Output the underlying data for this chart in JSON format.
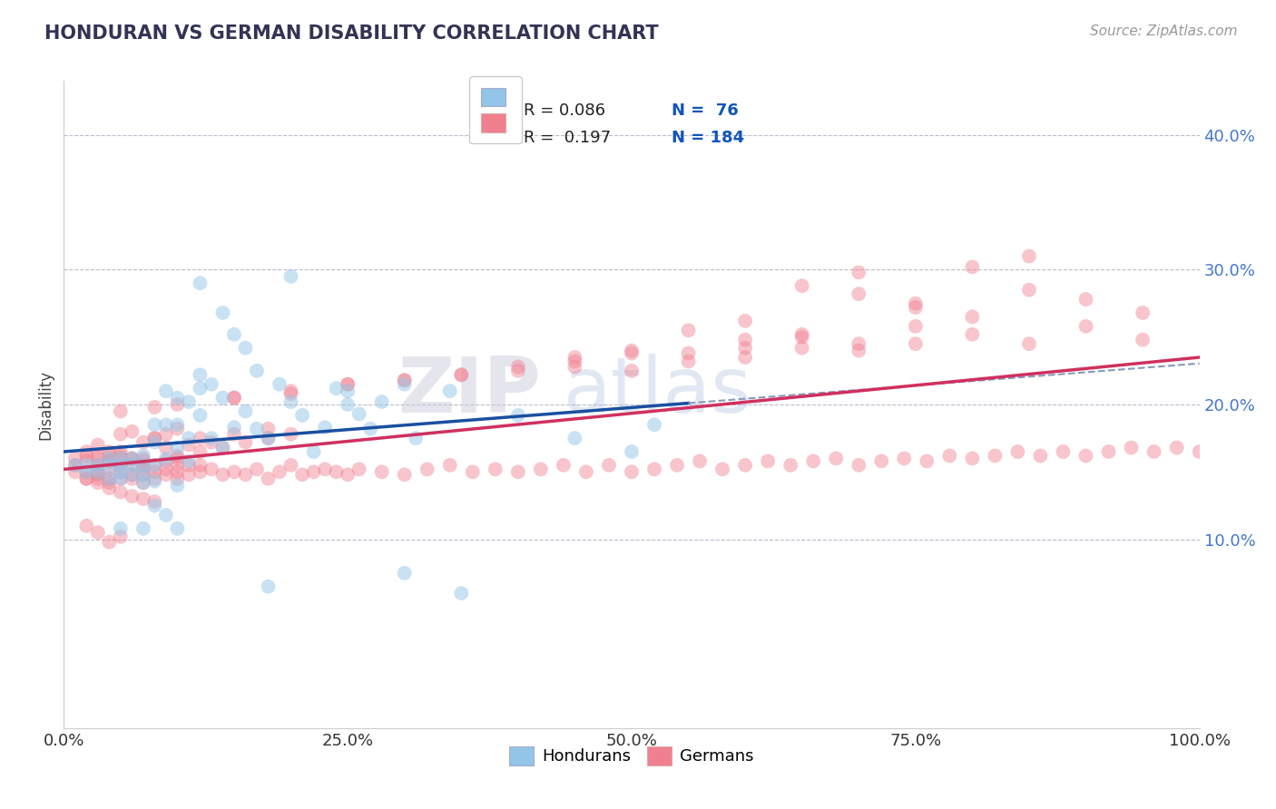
{
  "title": "HONDURAN VS GERMAN DISABILITY CORRELATION CHART",
  "source_text": "Source: ZipAtlas.com",
  "ylabel": "Disability",
  "xlim": [
    0.0,
    1.0
  ],
  "ylim": [
    -0.04,
    0.44
  ],
  "xticks": [
    0.0,
    0.25,
    0.5,
    0.75,
    1.0
  ],
  "xtick_labels": [
    "0.0%",
    "25.0%",
    "50.0%",
    "75.0%",
    "100.0%"
  ],
  "yticks": [
    0.1,
    0.2,
    0.3,
    0.4
  ],
  "ytick_labels": [
    "10.0%",
    "20.0%",
    "30.0%",
    "40.0%"
  ],
  "legend_labels": [
    "Hondurans",
    "Germans"
  ],
  "blue_color": "#92C5E8",
  "pink_color": "#F08090",
  "blue_line_color": "#1A4FA0",
  "pink_line_color": "#D03060",
  "blue_scatter_alpha": 0.5,
  "pink_scatter_alpha": 0.45,
  "watermark_zip": "ZIP",
  "watermark_atlas": "atlas",
  "grid_color": "#BBBBCC",
  "background_color": "#FFFFFF",
  "title_color": "#333355",
  "ylabel_color": "#444444",
  "yticklabel_color": "#4477CC",
  "xticklabel_color": "#333333",
  "source_color": "#999999",
  "legend_r_blue": "R = 0.086",
  "legend_n_blue": "N =  76",
  "legend_r_pink": "R =  0.197",
  "legend_n_pink": "N = 184",
  "hondurans_x": [
    0.01,
    0.02,
    0.02,
    0.03,
    0.03,
    0.04,
    0.04,
    0.04,
    0.05,
    0.05,
    0.05,
    0.05,
    0.06,
    0.06,
    0.06,
    0.07,
    0.07,
    0.07,
    0.07,
    0.08,
    0.08,
    0.08,
    0.08,
    0.09,
    0.09,
    0.09,
    0.1,
    0.1,
    0.1,
    0.1,
    0.11,
    0.11,
    0.11,
    0.12,
    0.12,
    0.12,
    0.13,
    0.13,
    0.14,
    0.14,
    0.15,
    0.15,
    0.16,
    0.17,
    0.17,
    0.18,
    0.19,
    0.2,
    0.21,
    0.22,
    0.23,
    0.24,
    0.25,
    0.26,
    0.27,
    0.28,
    0.3,
    0.31,
    0.34,
    0.4,
    0.45,
    0.5,
    0.52,
    0.05,
    0.07,
    0.08,
    0.09,
    0.1,
    0.12,
    0.14,
    0.16,
    0.18,
    0.2,
    0.25,
    0.3,
    0.35
  ],
  "hondurans_y": [
    0.155,
    0.155,
    0.15,
    0.15,
    0.155,
    0.145,
    0.155,
    0.16,
    0.145,
    0.155,
    0.16,
    0.15,
    0.148,
    0.155,
    0.16,
    0.142,
    0.155,
    0.162,
    0.148,
    0.143,
    0.155,
    0.172,
    0.185,
    0.185,
    0.16,
    0.21,
    0.205,
    0.168,
    0.14,
    0.185,
    0.158,
    0.175,
    0.202,
    0.212,
    0.192,
    0.222,
    0.175,
    0.215,
    0.168,
    0.205,
    0.183,
    0.252,
    0.195,
    0.182,
    0.225,
    0.175,
    0.215,
    0.202,
    0.192,
    0.165,
    0.183,
    0.212,
    0.2,
    0.193,
    0.182,
    0.202,
    0.215,
    0.175,
    0.21,
    0.192,
    0.175,
    0.165,
    0.185,
    0.108,
    0.108,
    0.125,
    0.118,
    0.108,
    0.29,
    0.268,
    0.242,
    0.065,
    0.295,
    0.21,
    0.075,
    0.06
  ],
  "germans_x": [
    0.01,
    0.01,
    0.01,
    0.02,
    0.02,
    0.02,
    0.02,
    0.03,
    0.03,
    0.03,
    0.03,
    0.03,
    0.04,
    0.04,
    0.04,
    0.04,
    0.04,
    0.05,
    0.05,
    0.05,
    0.05,
    0.05,
    0.06,
    0.06,
    0.06,
    0.06,
    0.07,
    0.07,
    0.07,
    0.07,
    0.07,
    0.08,
    0.08,
    0.08,
    0.09,
    0.09,
    0.09,
    0.1,
    0.1,
    0.1,
    0.1,
    0.11,
    0.11,
    0.12,
    0.12,
    0.13,
    0.14,
    0.15,
    0.16,
    0.17,
    0.18,
    0.19,
    0.2,
    0.21,
    0.22,
    0.23,
    0.24,
    0.25,
    0.26,
    0.28,
    0.3,
    0.32,
    0.34,
    0.36,
    0.38,
    0.4,
    0.42,
    0.44,
    0.46,
    0.48,
    0.5,
    0.52,
    0.54,
    0.56,
    0.58,
    0.6,
    0.62,
    0.64,
    0.66,
    0.68,
    0.7,
    0.72,
    0.74,
    0.76,
    0.78,
    0.8,
    0.82,
    0.84,
    0.86,
    0.88,
    0.9,
    0.92,
    0.94,
    0.96,
    0.98,
    1.0,
    0.02,
    0.03,
    0.04,
    0.05,
    0.06,
    0.07,
    0.08,
    0.09,
    0.1,
    0.11,
    0.12,
    0.13,
    0.14,
    0.16,
    0.18,
    0.2,
    0.03,
    0.04,
    0.05,
    0.06,
    0.07,
    0.08,
    0.09,
    0.1,
    0.12,
    0.15,
    0.18,
    0.02,
    0.03,
    0.04,
    0.05,
    0.06,
    0.07,
    0.08,
    0.7,
    0.75,
    0.8,
    0.85,
    0.9,
    0.95,
    0.65,
    0.7,
    0.75,
    0.8,
    0.85,
    0.9,
    0.95,
    0.6,
    0.65,
    0.7,
    0.75,
    0.8,
    0.85,
    0.55,
    0.6,
    0.65,
    0.7,
    0.75,
    0.5,
    0.55,
    0.6,
    0.65,
    0.45,
    0.5,
    0.55,
    0.6,
    0.4,
    0.45,
    0.5,
    0.35,
    0.4,
    0.45,
    0.3,
    0.35,
    0.25,
    0.3,
    0.2,
    0.25,
    0.15,
    0.2,
    0.1,
    0.15,
    0.05,
    0.08,
    0.02,
    0.03,
    0.04,
    0.05
  ],
  "germans_y": [
    0.15,
    0.155,
    0.16,
    0.145,
    0.15,
    0.158,
    0.162,
    0.145,
    0.15,
    0.155,
    0.16,
    0.148,
    0.145,
    0.152,
    0.158,
    0.162,
    0.142,
    0.145,
    0.15,
    0.155,
    0.16,
    0.162,
    0.145,
    0.148,
    0.155,
    0.16,
    0.142,
    0.148,
    0.155,
    0.16,
    0.152,
    0.145,
    0.15,
    0.155,
    0.148,
    0.152,
    0.158,
    0.145,
    0.15,
    0.155,
    0.16,
    0.148,
    0.155,
    0.15,
    0.155,
    0.152,
    0.148,
    0.15,
    0.148,
    0.152,
    0.145,
    0.15,
    0.155,
    0.148,
    0.15,
    0.152,
    0.15,
    0.148,
    0.152,
    0.15,
    0.148,
    0.152,
    0.155,
    0.15,
    0.152,
    0.15,
    0.152,
    0.155,
    0.15,
    0.155,
    0.15,
    0.152,
    0.155,
    0.158,
    0.152,
    0.155,
    0.158,
    0.155,
    0.158,
    0.16,
    0.155,
    0.158,
    0.16,
    0.158,
    0.162,
    0.16,
    0.162,
    0.165,
    0.162,
    0.165,
    0.162,
    0.165,
    0.168,
    0.165,
    0.168,
    0.165,
    0.165,
    0.162,
    0.158,
    0.165,
    0.16,
    0.158,
    0.175,
    0.168,
    0.162,
    0.17,
    0.165,
    0.172,
    0.168,
    0.172,
    0.175,
    0.178,
    0.17,
    0.165,
    0.178,
    0.18,
    0.172,
    0.175,
    0.178,
    0.182,
    0.175,
    0.178,
    0.182,
    0.145,
    0.142,
    0.138,
    0.135,
    0.132,
    0.13,
    0.128,
    0.282,
    0.275,
    0.265,
    0.31,
    0.278,
    0.268,
    0.288,
    0.298,
    0.272,
    0.302,
    0.285,
    0.258,
    0.248,
    0.262,
    0.252,
    0.245,
    0.258,
    0.252,
    0.245,
    0.255,
    0.248,
    0.242,
    0.24,
    0.245,
    0.238,
    0.238,
    0.242,
    0.25,
    0.235,
    0.24,
    0.232,
    0.235,
    0.228,
    0.232,
    0.225,
    0.222,
    0.225,
    0.228,
    0.218,
    0.222,
    0.215,
    0.218,
    0.21,
    0.215,
    0.205,
    0.208,
    0.2,
    0.205,
    0.195,
    0.198,
    0.11,
    0.105,
    0.098,
    0.102
  ]
}
